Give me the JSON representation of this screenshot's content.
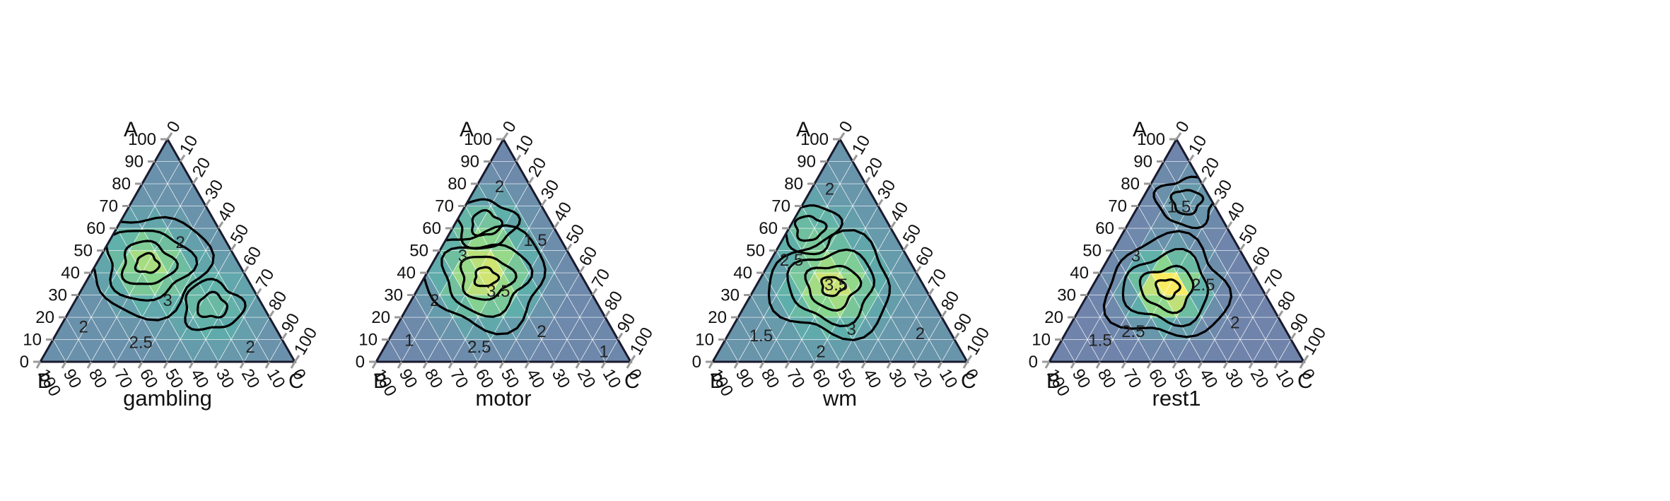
{
  "figure": {
    "panel_titles": [
      "gambling",
      "motor",
      "wm",
      "rest1"
    ]
  },
  "colors": {
    "palette": [
      "#440154",
      "#3b528b",
      "#21908c",
      "#5dc863",
      "#fde725"
    ],
    "contour": "#000000",
    "axis": "#1a1a2e",
    "tick": "#9a9a9a"
  },
  "chart_data": [
    {
      "type": "heatmap",
      "subtype": "ternary-heatmap-with-contours",
      "title": "gambling",
      "corner_labels": {
        "top": "A",
        "left": "B",
        "right": "C"
      },
      "axes": {
        "left": {
          "label": "A",
          "ticks": [
            0,
            10,
            20,
            30,
            40,
            50,
            60,
            70,
            80,
            90,
            100
          ],
          "range": [
            0,
            100
          ]
        },
        "bottom": {
          "label": "B",
          "ticks": [
            100,
            90,
            80,
            70,
            60,
            50,
            40,
            30,
            20,
            10,
            0
          ],
          "range": [
            0,
            100
          ]
        },
        "right": {
          "label": "C",
          "ticks": [
            0,
            10,
            20,
            30,
            40,
            50,
            60,
            70,
            80,
            90,
            100
          ],
          "range": [
            0,
            100
          ]
        }
      },
      "density_field": {
        "base": 1.4,
        "bumps": [
          {
            "A": 44,
            "B": 36,
            "C": 20,
            "amp": 2.1,
            "spread": 10
          },
          {
            "A": 25,
            "B": 20,
            "C": 55,
            "amp": 1.0,
            "spread": 11
          }
        ]
      },
      "contour_labels": [
        {
          "text": "2",
          "A": 54,
          "B": 18,
          "C": 28
        },
        {
          "text": "3",
          "A": 28,
          "B": 36,
          "C": 36
        },
        {
          "text": "2.5",
          "A": 9,
          "B": 56,
          "C": 35
        },
        {
          "text": "2",
          "A": 16,
          "B": 75,
          "C": 9
        },
        {
          "text": "2",
          "A": 7,
          "B": 14,
          "C": 79
        }
      ]
    },
    {
      "type": "heatmap",
      "subtype": "ternary-heatmap-with-contours",
      "title": "motor",
      "corner_labels": {
        "top": "A",
        "left": "B",
        "right": "C"
      },
      "axes": {
        "left": {
          "label": "A",
          "ticks": [
            0,
            10,
            20,
            30,
            40,
            50,
            60,
            70,
            80,
            90,
            100
          ],
          "range": [
            0,
            100
          ]
        },
        "bottom": {
          "label": "B",
          "ticks": [
            100,
            90,
            80,
            70,
            60,
            50,
            40,
            30,
            20,
            10,
            0
          ],
          "range": [
            0,
            100
          ]
        },
        "right": {
          "label": "C",
          "ticks": [
            0,
            10,
            20,
            30,
            40,
            50,
            60,
            70,
            80,
            90,
            100
          ],
          "range": [
            0,
            100
          ]
        }
      },
      "density_field": {
        "base": 1.2,
        "bumps": [
          {
            "A": 38,
            "B": 38,
            "C": 24,
            "amp": 2.6,
            "spread": 12
          },
          {
            "A": 62,
            "B": 26,
            "C": 12,
            "amp": 1.0,
            "spread": 9
          }
        ]
      },
      "contour_labels": [
        {
          "text": "2",
          "A": 79,
          "B": 12,
          "C": 9
        },
        {
          "text": "3",
          "A": 48,
          "B": 42,
          "C": 10
        },
        {
          "text": "1.5",
          "A": 55,
          "B": 10,
          "C": 35
        },
        {
          "text": "3.5",
          "A": 32,
          "B": 36,
          "C": 32
        },
        {
          "text": "2",
          "A": 28,
          "B": 63,
          "C": 9
        },
        {
          "text": "1",
          "A": 10,
          "B": 82,
          "C": 8
        },
        {
          "text": "2.5",
          "A": 7,
          "B": 56,
          "C": 37
        },
        {
          "text": "2",
          "A": 14,
          "B": 28,
          "C": 58
        },
        {
          "text": "1",
          "A": 5,
          "B": 8,
          "C": 87
        }
      ]
    },
    {
      "type": "heatmap",
      "subtype": "ternary-heatmap-with-contours",
      "title": "wm",
      "corner_labels": {
        "top": "A",
        "left": "B",
        "right": "C"
      },
      "axes": {
        "left": {
          "label": "A",
          "ticks": [
            0,
            10,
            20,
            30,
            40,
            50,
            60,
            70,
            80,
            90,
            100
          ],
          "range": [
            0,
            100
          ]
        },
        "bottom": {
          "label": "B",
          "ticks": [
            100,
            90,
            80,
            70,
            60,
            50,
            40,
            30,
            20,
            10,
            0
          ],
          "range": [
            0,
            100
          ]
        },
        "right": {
          "label": "C",
          "ticks": [
            0,
            10,
            20,
            30,
            40,
            50,
            60,
            70,
            80,
            90,
            100
          ],
          "range": [
            0,
            100
          ]
        }
      },
      "density_field": {
        "base": 1.5,
        "bumps": [
          {
            "A": 34,
            "B": 36,
            "C": 30,
            "amp": 2.3,
            "spread": 11
          },
          {
            "A": 60,
            "B": 32,
            "C": 8,
            "amp": 0.9,
            "spread": 8
          }
        ]
      },
      "contour_labels": [
        {
          "text": "2",
          "A": 78,
          "B": 15,
          "C": 7
        },
        {
          "text": "2.5",
          "A": 46,
          "B": 46,
          "C": 8
        },
        {
          "text": "3.5",
          "A": 35,
          "B": 34,
          "C": 31
        },
        {
          "text": "1.5",
          "A": 12,
          "B": 75,
          "C": 13
        },
        {
          "text": "2",
          "A": 5,
          "B": 55,
          "C": 40
        },
        {
          "text": "3",
          "A": 15,
          "B": 38,
          "C": 47
        },
        {
          "text": "2",
          "A": 13,
          "B": 12,
          "C": 75
        }
      ]
    },
    {
      "type": "heatmap",
      "subtype": "ternary-heatmap-with-contours",
      "title": "rest1",
      "corner_labels": {
        "top": "A",
        "left": "B",
        "right": "C"
      },
      "axes": {
        "left": {
          "label": "A",
          "ticks": [
            0,
            10,
            20,
            30,
            40,
            50,
            60,
            70,
            80,
            90,
            100
          ],
          "range": [
            0,
            100
          ]
        },
        "bottom": {
          "label": "B",
          "ticks": [
            100,
            90,
            80,
            70,
            60,
            50,
            40,
            30,
            20,
            10,
            0
          ],
          "range": [
            0,
            100
          ]
        },
        "right": {
          "label": "C",
          "ticks": [
            0,
            10,
            20,
            30,
            40,
            50,
            60,
            70,
            80,
            90,
            100
          ],
          "range": [
            0,
            100
          ]
        }
      },
      "density_field": {
        "base": 1.1,
        "bumps": [
          {
            "A": 33,
            "B": 37,
            "C": 30,
            "amp": 3.3,
            "spread": 9
          },
          {
            "A": 72,
            "B": 10,
            "C": 18,
            "amp": 0.6,
            "spread": 8
          }
        ]
      },
      "contour_labels": [
        {
          "text": "1.5",
          "A": 70,
          "B": 14,
          "C": 16
        },
        {
          "text": "3",
          "A": 48,
          "B": 42,
          "C": 10
        },
        {
          "text": "2.5",
          "A": 35,
          "B": 22,
          "C": 43
        },
        {
          "text": "2.5",
          "A": 14,
          "B": 60,
          "C": 26
        },
        {
          "text": "1.5",
          "A": 10,
          "B": 75,
          "C": 15
        },
        {
          "text": "2",
          "A": 18,
          "B": 18,
          "C": 64
        }
      ]
    }
  ]
}
